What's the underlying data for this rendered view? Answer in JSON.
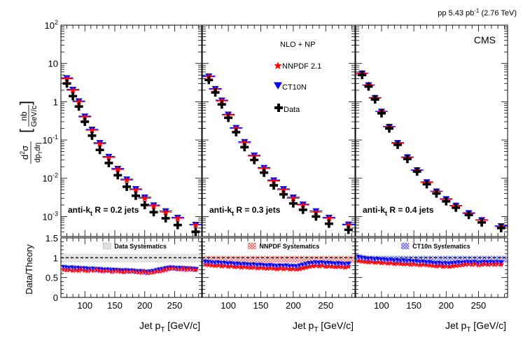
{
  "chart_data": {
    "type": "scatter",
    "header": {
      "lumi_prefix": "pp 5.43 pb",
      "lumi_sup": "-1",
      "lumi_suffix": " (2.76 TeV)"
    },
    "experiment": "CMS",
    "legend": {
      "heading": "NLO + NP",
      "entries": [
        {
          "label": "NNPDF 2.1",
          "marker": "star",
          "color": "#ff0000"
        },
        {
          "label": "CT10N",
          "marker": "triangle-down",
          "color": "#0000ff"
        },
        {
          "label": "Data",
          "marker": "cross",
          "color": "#000000"
        }
      ]
    },
    "colors": {
      "data": "#000000",
      "nnpdf": "#ff0000",
      "ct10": "#0000ff"
    },
    "axes": {
      "x_label_main": "Jet p",
      "x_label_sub": "T",
      "x_label_unit": " [GeV/c]",
      "x_range": [
        60,
        295
      ],
      "x_ticks": [
        100,
        150,
        200,
        250
      ],
      "x_tick_labels": [
        "100",
        "150",
        "200",
        "250"
      ],
      "upper_y_range_log": [
        0.0003,
        100
      ],
      "upper_y_ticks": [
        100,
        10,
        1,
        0.1,
        0.01,
        0.001
      ],
      "upper_y_tick_labels": [
        {
          "b": "10",
          "e": "2"
        },
        {
          "b": "10",
          "e": ""
        },
        {
          "b": "1",
          "e": ""
        },
        {
          "b": "10",
          "e": "-1"
        },
        {
          "b": "10",
          "e": "-2"
        },
        {
          "b": "10",
          "e": "-3"
        }
      ],
      "upper_y_label": {
        "d2": "d",
        "sup2": "2",
        "sigma": "σ",
        "den": "dp",
        "den_sub": "T",
        "den2": "dη",
        "nb": "nb",
        "gev": "GeV/c"
      },
      "lower_y_label": "Data/Theory",
      "lower_y_range": [
        0,
        1.5
      ],
      "lower_y_ticks": [
        0,
        0.5,
        1,
        1.5
      ],
      "lower_y_tick_labels": [
        "0",
        "0.5",
        "1",
        "1.5"
      ]
    },
    "panels": [
      {
        "label_pre": "anti-k",
        "label_sub": "t",
        "label_post": " R = 0.2 jets",
        "syst_label": "Data Systematics",
        "syst_style": "data",
        "x": [
          70,
          80,
          90,
          100,
          112,
          125,
          140,
          155,
          170,
          185,
          200,
          215,
          235,
          255,
          285
        ],
        "data": [
          3.0,
          1.4,
          0.75,
          0.3,
          0.13,
          0.055,
          0.025,
          0.012,
          0.006,
          0.0035,
          0.002,
          0.0013,
          0.0009,
          0.0006,
          0.0004
        ],
        "nnpdf": [
          4.0,
          2.0,
          1.0,
          0.4,
          0.18,
          0.08,
          0.035,
          0.017,
          0.009,
          0.005,
          0.003,
          0.0019,
          0.0013,
          0.0009,
          0.0006
        ],
        "ct10": [
          4.2,
          2.1,
          1.05,
          0.42,
          0.19,
          0.085,
          0.037,
          0.018,
          0.0095,
          0.0053,
          0.0032,
          0.002,
          0.0014,
          0.00095,
          0.00062
        ],
        "ratio_x": [
          65,
          70,
          75,
          80,
          85,
          90,
          95,
          100,
          105,
          110,
          115,
          120,
          125,
          130,
          135,
          140,
          145,
          150,
          155,
          160,
          165,
          170,
          175,
          180,
          185,
          190,
          195,
          200,
          205,
          210,
          215,
          220,
          225,
          230,
          235,
          240,
          245,
          250,
          255,
          260,
          265,
          270,
          275,
          280,
          285
        ],
        "ratio_nnpdf": [
          0.7,
          0.69,
          0.7,
          0.68,
          0.69,
          0.68,
          0.7,
          0.68,
          0.67,
          0.69,
          0.68,
          0.7,
          0.67,
          0.66,
          0.68,
          0.67,
          0.65,
          0.66,
          0.67,
          0.65,
          0.64,
          0.66,
          0.65,
          0.67,
          0.65,
          0.64,
          0.63,
          0.65,
          0.62,
          0.63,
          0.64,
          0.66,
          0.66,
          0.68,
          0.7,
          0.72,
          0.73,
          0.74,
          0.72,
          0.71,
          0.73,
          0.7,
          0.72,
          0.71,
          0.7
        ],
        "ratio_ct10": [
          0.76,
          0.75,
          0.74,
          0.75,
          0.73,
          0.74,
          0.72,
          0.73,
          0.72,
          0.71,
          0.72,
          0.7,
          0.71,
          0.7,
          0.69,
          0.7,
          0.68,
          0.69,
          0.68,
          0.68,
          0.67,
          0.68,
          0.67,
          0.67,
          0.66,
          0.65,
          0.66,
          0.64,
          0.64,
          0.65,
          0.66,
          0.68,
          0.7,
          0.71,
          0.73,
          0.74,
          0.75,
          0.74,
          0.73,
          0.74,
          0.72,
          0.73,
          0.72,
          0.72,
          0.71
        ],
        "syst_band": [
          0.88,
          1.1
        ]
      },
      {
        "label_pre": "anti-k",
        "label_sub": "t",
        "label_post": " R = 0.3 jets",
        "syst_label": "NNPDF Systematics",
        "syst_style": "nnpdf",
        "x": [
          70,
          80,
          90,
          100,
          112,
          125,
          140,
          155,
          170,
          185,
          200,
          215,
          235,
          255,
          285
        ],
        "data": [
          3.7,
          1.75,
          0.85,
          0.38,
          0.16,
          0.065,
          0.03,
          0.014,
          0.0065,
          0.0038,
          0.0022,
          0.0015,
          0.001,
          0.00065,
          0.00045
        ],
        "nnpdf": [
          4.5,
          2.1,
          1.05,
          0.45,
          0.2,
          0.085,
          0.038,
          0.018,
          0.0085,
          0.005,
          0.003,
          0.002,
          0.0013,
          0.0009,
          0.0006
        ],
        "ct10": [
          4.7,
          2.2,
          1.1,
          0.47,
          0.21,
          0.09,
          0.04,
          0.019,
          0.009,
          0.0053,
          0.0032,
          0.0021,
          0.0014,
          0.00095,
          0.00063
        ],
        "ratio_x": [
          65,
          70,
          75,
          80,
          85,
          90,
          95,
          100,
          105,
          110,
          115,
          120,
          125,
          130,
          135,
          140,
          145,
          150,
          155,
          160,
          165,
          170,
          175,
          180,
          185,
          190,
          195,
          200,
          205,
          210,
          215,
          220,
          225,
          230,
          235,
          240,
          245,
          250,
          255,
          260,
          265,
          270,
          275,
          280,
          285
        ],
        "ratio_nnpdf": [
          0.83,
          0.82,
          0.81,
          0.8,
          0.81,
          0.79,
          0.8,
          0.78,
          0.79,
          0.77,
          0.78,
          0.76,
          0.77,
          0.76,
          0.75,
          0.76,
          0.74,
          0.75,
          0.74,
          0.73,
          0.74,
          0.73,
          0.72,
          0.73,
          0.72,
          0.73,
          0.71,
          0.72,
          0.71,
          0.72,
          0.74,
          0.76,
          0.78,
          0.79,
          0.8,
          0.79,
          0.8,
          0.78,
          0.79,
          0.78,
          0.77,
          0.78,
          0.77,
          0.76,
          0.78
        ],
        "ratio_ct10": [
          0.9,
          0.89,
          0.88,
          0.87,
          0.88,
          0.86,
          0.87,
          0.85,
          0.86,
          0.84,
          0.85,
          0.83,
          0.84,
          0.83,
          0.82,
          0.83,
          0.81,
          0.82,
          0.81,
          0.8,
          0.81,
          0.8,
          0.79,
          0.8,
          0.79,
          0.8,
          0.78,
          0.79,
          0.78,
          0.8,
          0.82,
          0.84,
          0.86,
          0.87,
          0.88,
          0.87,
          0.88,
          0.86,
          0.87,
          0.86,
          0.85,
          0.86,
          0.85,
          0.84,
          0.85
        ],
        "syst_band": [
          0.88,
          1.05
        ]
      },
      {
        "label_pre": "anti-k",
        "label_sub": "t",
        "label_post": " R = 0.4 jets",
        "syst_label": "CT10n Systematics",
        "syst_style": "ct10",
        "x": [
          70,
          80,
          90,
          100,
          112,
          125,
          140,
          155,
          170,
          185,
          200,
          215,
          235,
          255,
          285
        ],
        "data": [
          5.0,
          2.5,
          1.15,
          0.5,
          0.2,
          0.075,
          0.032,
          0.015,
          0.007,
          0.004,
          0.0025,
          0.0017,
          0.0011,
          0.0007,
          0.0005
        ],
        "nnpdf": [
          5.5,
          2.7,
          1.25,
          0.55,
          0.22,
          0.082,
          0.035,
          0.016,
          0.0078,
          0.0045,
          0.0028,
          0.0019,
          0.0012,
          0.0008,
          0.00055
        ],
        "ct10": [
          5.6,
          2.75,
          1.28,
          0.56,
          0.225,
          0.085,
          0.036,
          0.0165,
          0.008,
          0.0046,
          0.0029,
          0.00195,
          0.00125,
          0.00082,
          0.00057
        ],
        "ratio_x": [
          65,
          70,
          75,
          80,
          85,
          90,
          95,
          100,
          105,
          110,
          115,
          120,
          125,
          130,
          135,
          140,
          145,
          150,
          155,
          160,
          165,
          170,
          175,
          180,
          185,
          190,
          195,
          200,
          205,
          210,
          215,
          220,
          225,
          230,
          235,
          240,
          245,
          250,
          255,
          260,
          265,
          270,
          275,
          280,
          285
        ],
        "ratio_nnpdf": [
          0.92,
          0.91,
          0.9,
          0.89,
          0.9,
          0.88,
          0.89,
          0.87,
          0.88,
          0.86,
          0.87,
          0.85,
          0.86,
          0.85,
          0.84,
          0.85,
          0.83,
          0.84,
          0.83,
          0.82,
          0.83,
          0.82,
          0.81,
          0.8,
          0.79,
          0.8,
          0.78,
          0.79,
          0.78,
          0.79,
          0.8,
          0.81,
          0.82,
          0.83,
          0.84,
          0.83,
          0.84,
          0.82,
          0.83,
          0.84,
          0.83,
          0.84,
          0.83,
          0.84,
          0.83
        ],
        "ratio_ct10": [
          1.02,
          1.0,
          0.99,
          0.97,
          0.98,
          0.96,
          0.97,
          0.95,
          0.96,
          0.94,
          0.95,
          0.93,
          0.94,
          0.92,
          0.93,
          0.91,
          0.92,
          0.9,
          0.91,
          0.89,
          0.9,
          0.88,
          0.89,
          0.87,
          0.86,
          0.87,
          0.85,
          0.86,
          0.85,
          0.86,
          0.87,
          0.88,
          0.87,
          0.88,
          0.89,
          0.88,
          0.89,
          0.87,
          0.88,
          0.89,
          0.88,
          0.89,
          0.88,
          0.89,
          0.88
        ],
        "syst_band": [
          0.9,
          1.05
        ]
      }
    ]
  }
}
